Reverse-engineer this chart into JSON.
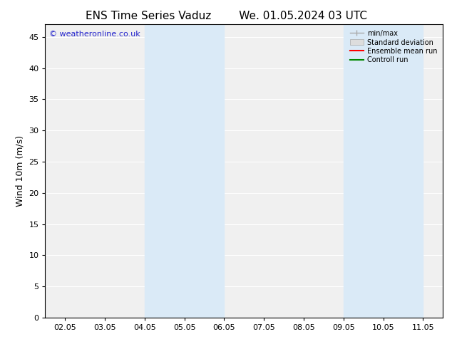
{
  "title_left": "ENS Time Series Vaduz",
  "title_right": "We. 01.05.2024 03 UTC",
  "ylabel": "Wind 10m (m/s)",
  "watermark": "© weatheronline.co.uk",
  "x_tick_labels": [
    "02.05",
    "03.05",
    "04.05",
    "05.05",
    "06.05",
    "07.05",
    "08.05",
    "09.05",
    "10.05",
    "11.05"
  ],
  "x_tick_positions": [
    0,
    1,
    2,
    3,
    4,
    5,
    6,
    7,
    8,
    9
  ],
  "ylim": [
    0,
    47
  ],
  "yticks": [
    0,
    5,
    10,
    15,
    20,
    25,
    30,
    35,
    40,
    45
  ],
  "background_color": "#ffffff",
  "shaded_regions": [
    {
      "xmin": 2.0,
      "xmax": 3.0,
      "color": "#daeaf7"
    },
    {
      "xmin": 3.0,
      "xmax": 4.0,
      "color": "#daeaf7"
    },
    {
      "xmin": 7.0,
      "xmax": 8.0,
      "color": "#daeaf7"
    },
    {
      "xmin": 8.0,
      "xmax": 9.0,
      "color": "#daeaf7"
    }
  ],
  "legend_labels": [
    "min/max",
    "Standard deviation",
    "Ensemble mean run",
    "Controll run"
  ],
  "minmax_color": "#aaaaaa",
  "std_facecolor": "#dddddd",
  "std_edgecolor": "#aaaaaa",
  "ensemble_color": "#ff0000",
  "control_color": "#008800",
  "title_fontsize": 11,
  "axis_label_fontsize": 9,
  "tick_fontsize": 8,
  "watermark_color": "#2222cc",
  "watermark_fontsize": 8,
  "plot_bg_color": "#f0f0f0",
  "spine_color": "#000000",
  "grid_color": "#ffffff",
  "xlim_left": -0.5,
  "xlim_right": 9.5
}
